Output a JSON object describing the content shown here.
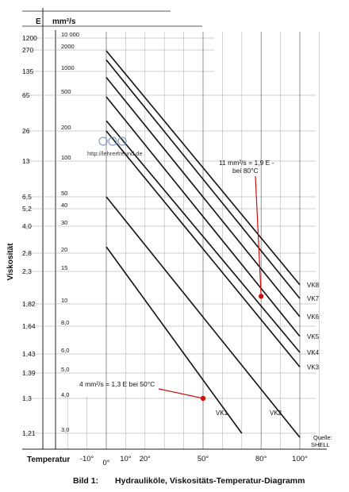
{
  "chart_data": {
    "type": "line",
    "header": {
      "e_label": "E",
      "mm_label": "mm²/s"
    },
    "ylabel": "Viskosität",
    "xlabel": "Temperatur",
    "x_ticks": [
      {
        "label": "-10°",
        "value": -10
      },
      {
        "label": "0°",
        "value": 0
      },
      {
        "label": "10°",
        "value": 10
      },
      {
        "label": "20°",
        "value": 20
      },
      {
        "label": "50°",
        "value": 50
      },
      {
        "label": "80°",
        "value": 80
      },
      {
        "label": "100°",
        "value": 100
      }
    ],
    "y_rows": [
      {
        "e": "1200",
        "mm": "10 000",
        "v": 10000
      },
      {
        "e": "270",
        "mm": "2000",
        "v": 2000
      },
      {
        "e": "135",
        "mm": "1000",
        "v": 1000
      },
      {
        "e": "65",
        "mm": "500",
        "v": 500
      },
      {
        "e": "26",
        "mm": "200",
        "v": 200
      },
      {
        "e": "13",
        "mm": "100",
        "v": 100
      },
      {
        "e": "6,5",
        "mm": "50",
        "v": 50
      },
      {
        "e": "5,2",
        "mm": "40",
        "v": 40
      },
      {
        "e": "4,0",
        "mm": "30",
        "v": 30
      },
      {
        "e": "2,8",
        "mm": "20",
        "v": 20
      },
      {
        "e": "2,3",
        "mm": "15",
        "v": 15
      },
      {
        "e": "1,82",
        "mm": "10",
        "v": 10
      },
      {
        "e": "1,64",
        "mm": "8,0",
        "v": 8
      },
      {
        "e": "1,43",
        "mm": "6,0",
        "v": 6
      },
      {
        "e": "1,39",
        "mm": "5,0",
        "v": 5
      },
      {
        "e": "1,3",
        "mm": "4,0",
        "v": 4
      },
      {
        "e": "1,21",
        "mm": "3,0",
        "v": 3
      }
    ],
    "series": [
      {
        "name": "VK1",
        "x": [
          0,
          70
        ],
        "y": [
          22,
          3
        ]
      },
      {
        "name": "VK2",
        "x": [
          0,
          100
        ],
        "y": [
          50,
          2.9
        ]
      },
      {
        "name": "VK3",
        "x": [
          0,
          100
        ],
        "y": [
          200,
          5.3
        ]
      },
      {
        "name": "VK4",
        "x": [
          0,
          100
        ],
        "y": [
          260,
          6.1
        ]
      },
      {
        "name": "VK5",
        "x": [
          0,
          100
        ],
        "y": [
          480,
          7.2
        ]
      },
      {
        "name": "VK6",
        "x": [
          0,
          100
        ],
        "y": [
          840,
          8.8
        ]
      },
      {
        "name": "VK7",
        "x": [
          0,
          100
        ],
        "y": [
          1450,
          10.7
        ]
      },
      {
        "name": "VK8",
        "x": [
          0,
          100
        ],
        "y": [
          1950,
          12.7
        ]
      }
    ],
    "annotations": [
      {
        "text": "4 mm²/s = 1,3 E bei 50°C",
        "lines": [
          "4 mm²/s = 1,3 E bei 50°C"
        ],
        "x": 50,
        "y": 4,
        "color": "#cc1111"
      },
      {
        "text": "11 mm²/s = 1,9 E - bei 80°C",
        "lines": [
          "11 mm²/s = 1,9 E -",
          "bei 80°C"
        ],
        "x": 80,
        "y": 11,
        "color": "#cc1111"
      }
    ],
    "source_note": [
      "Quelle:",
      "SHELL"
    ],
    "watermark": "http://lehrerfreund.de",
    "grid": true
  },
  "caption": {
    "number": "Bild 1:",
    "text": "Hydrauliköle, Viskositäts-Temperatur-Diagramm"
  }
}
